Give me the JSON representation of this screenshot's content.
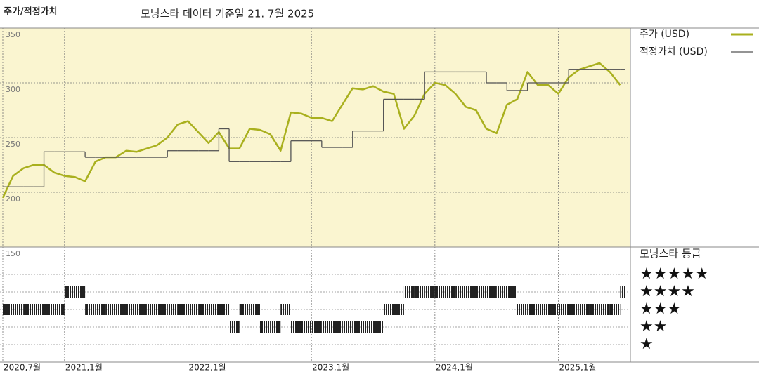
{
  "chart_data": {
    "type": "line",
    "title": "주가/적정가치",
    "subtitle": "모닝스타 데이터 기준일 21. 7월 2025",
    "x": [
      "2020-07",
      "2020-08",
      "2020-09",
      "2020-10",
      "2020-11",
      "2020-12",
      "2021-01",
      "2021-02",
      "2021-03",
      "2021-04",
      "2021-05",
      "2021-06",
      "2021-07",
      "2021-08",
      "2021-09",
      "2021-10",
      "2021-11",
      "2021-12",
      "2022-01",
      "2022-02",
      "2022-03",
      "2022-04",
      "2022-05",
      "2022-06",
      "2022-07",
      "2022-08",
      "2022-09",
      "2022-10",
      "2022-11",
      "2022-12",
      "2023-01",
      "2023-02",
      "2023-03",
      "2023-04",
      "2023-05",
      "2023-06",
      "2023-07",
      "2023-08",
      "2023-09",
      "2023-10",
      "2023-11",
      "2023-12",
      "2024-01",
      "2024-02",
      "2024-03",
      "2024-04",
      "2024-05",
      "2024-06",
      "2024-07",
      "2024-08",
      "2024-09",
      "2024-10",
      "2024-11",
      "2024-12",
      "2025-01",
      "2025-02",
      "2025-03",
      "2025-04",
      "2025-05",
      "2025-06",
      "2025-07"
    ],
    "xlim": [
      "2020-07",
      "2025-08"
    ],
    "xticks": [
      {
        "value": "2020-07",
        "label": "2020,7월"
      },
      {
        "value": "2021-01",
        "label": "2021,1월"
      },
      {
        "value": "2022-01",
        "label": "2022,1월"
      },
      {
        "value": "2023-01",
        "label": "2023,1월"
      },
      {
        "value": "2024-01",
        "label": "2024,1월"
      },
      {
        "value": "2025-01",
        "label": "2025,1월"
      }
    ],
    "ylim": [
      150,
      350
    ],
    "yticks": [
      150,
      200,
      250,
      300,
      350
    ],
    "grid": true,
    "series": [
      {
        "name": "주가 (USD)",
        "color": "#a9b01e",
        "style": "line",
        "values": [
          195,
          215,
          222,
          225,
          225,
          218,
          215,
          214,
          210,
          228,
          232,
          232,
          238,
          237,
          240,
          243,
          250,
          262,
          265,
          255,
          245,
          255,
          240,
          240,
          258,
          257,
          253,
          238,
          273,
          272,
          268,
          268,
          265,
          280,
          295,
          294,
          297,
          292,
          290,
          258,
          270,
          290,
          300,
          298,
          290,
          278,
          275,
          258,
          254,
          280,
          285,
          310,
          298,
          298,
          290,
          305,
          312,
          315,
          318,
          310,
          298
        ]
      },
      {
        "name": "적정가치 (USD)",
        "color": "#555555",
        "style": "step",
        "values": [
          205,
          205,
          205,
          205,
          237,
          237,
          237,
          237,
          232,
          232,
          232,
          232,
          232,
          232,
          232,
          232,
          238,
          238,
          238,
          238,
          238,
          258,
          228,
          228,
          228,
          228,
          228,
          228,
          247,
          247,
          247,
          241,
          241,
          241,
          256,
          256,
          256,
          285,
          285,
          285,
          285,
          310,
          310,
          310,
          310,
          310,
          310,
          300,
          300,
          293,
          293,
          300,
          300,
          300,
          300,
          312,
          312,
          312,
          312,
          312,
          312
        ]
      }
    ],
    "ratings": {
      "title": "모닝스타 등급",
      "levels": [
        {
          "value": 5,
          "label": "★★★★★"
        },
        {
          "value": 4,
          "label": "★★★★"
        },
        {
          "value": 3,
          "label": "★★★"
        },
        {
          "value": 2,
          "label": "★★"
        },
        {
          "value": 1,
          "label": "★"
        }
      ],
      "values": [
        3,
        3,
        3,
        3,
        3,
        3,
        4,
        4,
        3,
        3,
        3,
        3,
        3,
        3,
        3,
        3,
        3,
        3,
        3,
        3,
        3,
        3,
        2,
        3,
        3,
        2,
        2,
        3,
        2,
        2,
        2,
        2,
        2,
        2,
        2,
        2,
        2,
        3,
        3,
        4,
        4,
        4,
        4,
        4,
        4,
        4,
        4,
        4,
        4,
        4,
        3,
        3,
        3,
        3,
        3,
        3,
        3,
        3,
        3,
        3,
        4
      ]
    }
  }
}
